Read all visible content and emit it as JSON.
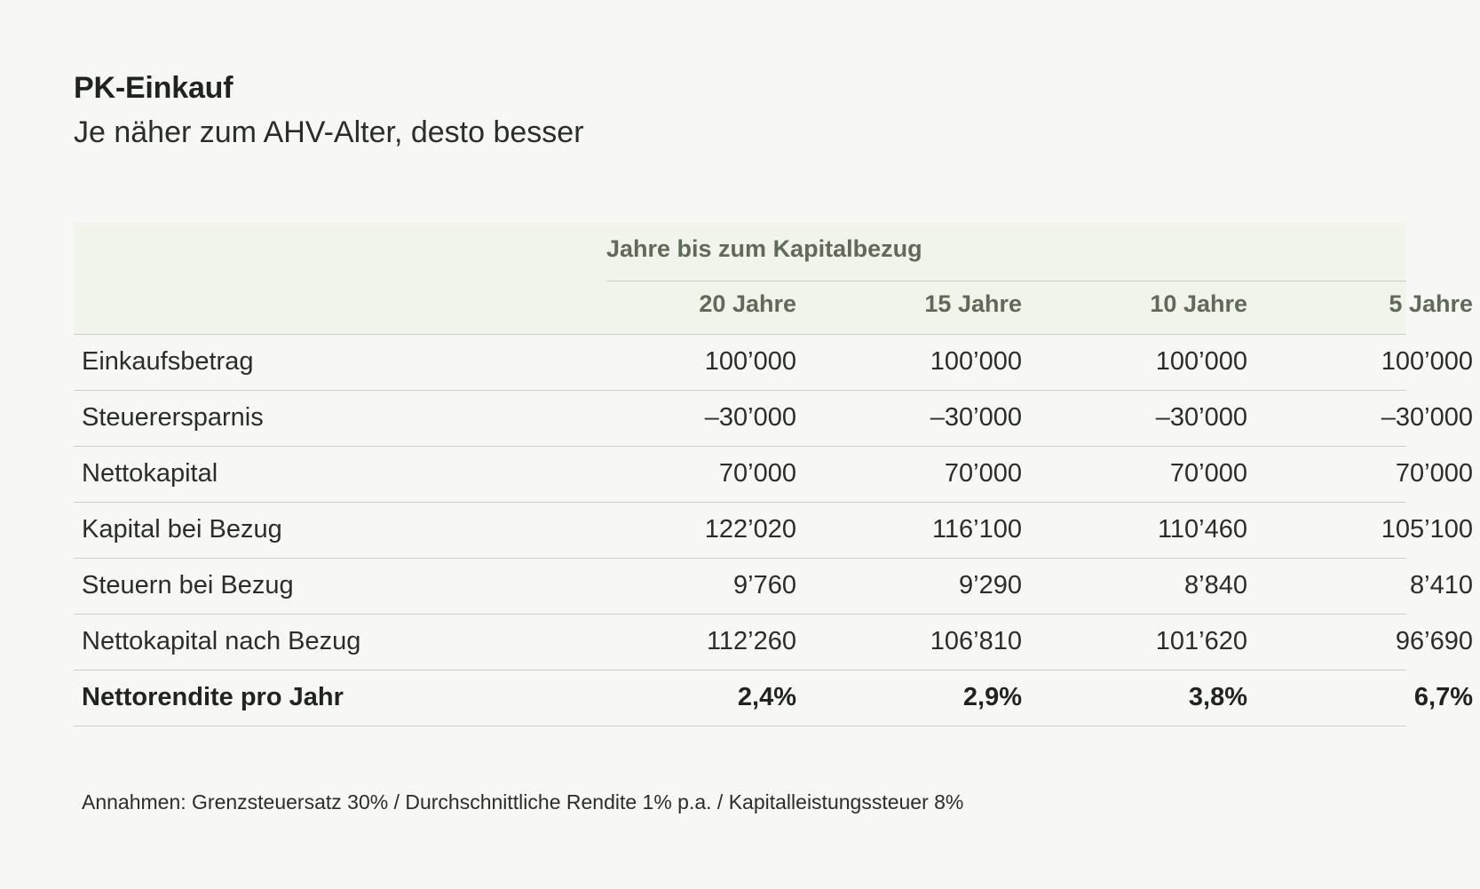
{
  "title": "PK-Einkauf",
  "subtitle": "Je näher zum AHV-Alter, desto besser",
  "table": {
    "group_header": "Jahre bis zum Kapitalbezug",
    "columns": [
      "20 Jahre",
      "15 Jahre",
      "10 Jahre",
      "5 Jahre"
    ],
    "rows": [
      {
        "label": "Einkaufsbetrag",
        "values": [
          "100’000",
          "100’000",
          "100’000",
          "100’000"
        ]
      },
      {
        "label": "Steuerersparnis",
        "values": [
          "–30’000",
          "–30’000",
          "–30’000",
          "–30’000"
        ]
      },
      {
        "label": "Nettokapital",
        "values": [
          "70’000",
          "70’000",
          "70’000",
          "70’000"
        ]
      },
      {
        "label": "Kapital bei Bezug",
        "values": [
          "122’020",
          "116’100",
          "110’460",
          "105’100"
        ]
      },
      {
        "label": "Steuern bei Bezug",
        "values": [
          "9’760",
          "9’290",
          "8’840",
          "8’410"
        ]
      },
      {
        "label": "Nettokapital nach Bezug",
        "values": [
          "112’260",
          "106’810",
          "101’620",
          "96’690"
        ]
      },
      {
        "label": "Nettorendite pro Jahr",
        "values": [
          "2,4%",
          "2,9%",
          "3,8%",
          "6,7%"
        ]
      }
    ]
  },
  "footnote": "Annahmen: Grenzsteuersatz 30%  /  Durchschnittliche Rendite 1% p.a.  /  Kapitalleistungssteuer 8%",
  "colors": {
    "header_bg": "#f1f4ea",
    "header_text": "#5f6b58",
    "rule": "#c9d0be",
    "text": "#2a2e2b"
  }
}
